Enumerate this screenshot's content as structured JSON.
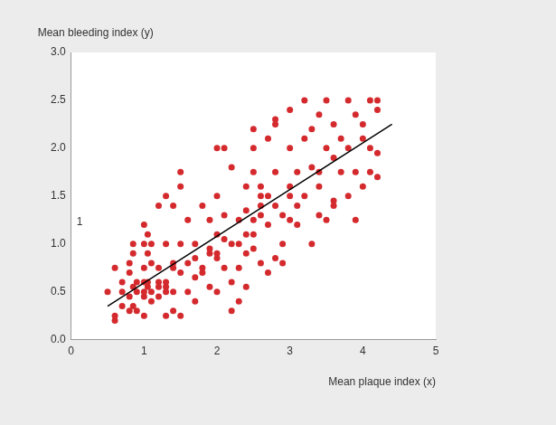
{
  "chart_data": {
    "type": "scatter",
    "x_label": "Mean plaque index (x)",
    "y_label": "Mean bleeding index (y)",
    "annotation": "1",
    "xlim": [
      0,
      5
    ],
    "xticks": [
      0,
      1,
      2,
      3,
      4,
      5
    ],
    "ylim": [
      0,
      3
    ],
    "yticks": [
      {
        "value": 0,
        "label": "0.0"
      },
      0.5,
      {
        "value": 1,
        "label": "1.0"
      },
      1.5,
      {
        "value": 2,
        "label": "2.0"
      },
      2.5,
      {
        "value": 3,
        "label": "3.0"
      }
    ],
    "grid": false,
    "series": [
      {
        "type": "scatter",
        "color": "#d42a2e",
        "marker": "circle",
        "x": [
          0.5,
          0.6,
          0.6,
          0.6,
          0.7,
          0.7,
          0.7,
          0.8,
          0.8,
          0.8,
          0.8,
          0.85,
          0.85,
          0.85,
          0.85,
          0.9,
          0.9,
          0.9,
          1.0,
          1.0,
          1.0,
          1.0,
          1.0,
          1.0,
          1.0,
          1.05,
          1.05,
          1.05,
          1.05,
          1.1,
          1.1,
          1.1,
          1.1,
          1.2,
          1.2,
          1.2,
          1.2,
          1.2,
          1.3,
          1.3,
          1.3,
          1.3,
          1.3,
          1.3,
          1.4,
          1.4,
          1.4,
          1.4,
          1.4,
          1.5,
          1.5,
          1.5,
          1.5,
          1.5,
          1.6,
          1.6,
          1.6,
          1.7,
          1.7,
          1.7,
          1.7,
          1.8,
          1.8,
          1.8,
          1.9,
          1.9,
          1.9,
          1.9,
          2.0,
          2.0,
          2.0,
          2.0,
          2.0,
          2.0,
          2.1,
          2.1,
          2.1,
          2.1,
          2.2,
          2.2,
          2.2,
          2.2,
          2.3,
          2.3,
          2.3,
          2.3,
          2.4,
          2.4,
          2.4,
          2.4,
          2.4,
          2.5,
          2.5,
          2.5,
          2.5,
          2.5,
          2.5,
          2.6,
          2.6,
          2.6,
          2.6,
          2.6,
          2.7,
          2.7,
          2.7,
          2.7,
          2.8,
          2.8,
          2.8,
          2.8,
          2.8,
          2.9,
          2.9,
          2.9,
          3.0,
          3.0,
          3.0,
          3.0,
          3.0,
          3.1,
          3.1,
          3.1,
          3.2,
          3.2,
          3.2,
          3.3,
          3.3,
          3.3,
          3.4,
          3.4,
          3.4,
          3.4,
          3.5,
          3.5,
          3.5,
          3.6,
          3.6,
          3.6,
          3.6,
          3.7,
          3.7,
          3.8,
          3.8,
          3.8,
          3.9,
          3.9,
          3.9,
          4.0,
          4.0,
          4.0,
          4.1,
          4.1,
          4.1,
          4.2,
          4.2,
          4.2,
          4.2
        ],
        "values": [
          0.5,
          0.75,
          0.25,
          0.2,
          0.35,
          0.5,
          0.6,
          0.8,
          0.7,
          0.45,
          0.3,
          1.0,
          0.9,
          0.55,
          0.35,
          0.6,
          0.5,
          0.3,
          1.2,
          1.0,
          0.75,
          0.6,
          0.5,
          0.45,
          0.25,
          1.1,
          0.9,
          0.55,
          0.6,
          1.0,
          0.8,
          0.5,
          0.4,
          1.4,
          0.75,
          0.6,
          0.55,
          0.45,
          1.5,
          1.0,
          0.6,
          0.55,
          0.5,
          0.25,
          1.4,
          0.8,
          0.75,
          0.5,
          0.3,
          1.75,
          1.6,
          1.0,
          0.7,
          0.25,
          1.25,
          0.8,
          0.5,
          1.0,
          0.85,
          0.65,
          0.4,
          1.4,
          0.75,
          0.7,
          1.25,
          0.95,
          0.9,
          0.55,
          2.0,
          1.5,
          1.1,
          0.9,
          0.85,
          0.5,
          2.0,
          1.3,
          1.05,
          0.75,
          1.8,
          1.0,
          0.6,
          0.3,
          1.25,
          1.0,
          0.75,
          0.4,
          1.6,
          1.35,
          1.1,
          0.9,
          0.55,
          2.2,
          2.0,
          1.75,
          1.25,
          1.1,
          0.95,
          1.6,
          1.5,
          1.4,
          1.3,
          0.8,
          2.1,
          1.5,
          1.2,
          0.7,
          2.3,
          2.25,
          1.75,
          1.4,
          0.85,
          1.3,
          1.0,
          0.8,
          2.4,
          2.0,
          1.6,
          1.5,
          1.25,
          1.75,
          1.4,
          1.2,
          2.5,
          2.1,
          1.5,
          2.2,
          1.8,
          1.0,
          2.35,
          1.75,
          1.6,
          1.3,
          2.5,
          2.0,
          1.25,
          2.25,
          1.9,
          1.45,
          1.4,
          2.1,
          1.75,
          2.5,
          2.0,
          1.5,
          2.35,
          1.75,
          1.25,
          2.25,
          2.1,
          1.6,
          2.5,
          2.0,
          1.75,
          2.5,
          2.4,
          1.95,
          1.7
        ]
      },
      {
        "type": "line",
        "color": "#000000",
        "marker": "none",
        "line_style": "solid",
        "x": [
          0.5,
          4.4
        ],
        "values": [
          0.35,
          2.25
        ]
      }
    ]
  }
}
